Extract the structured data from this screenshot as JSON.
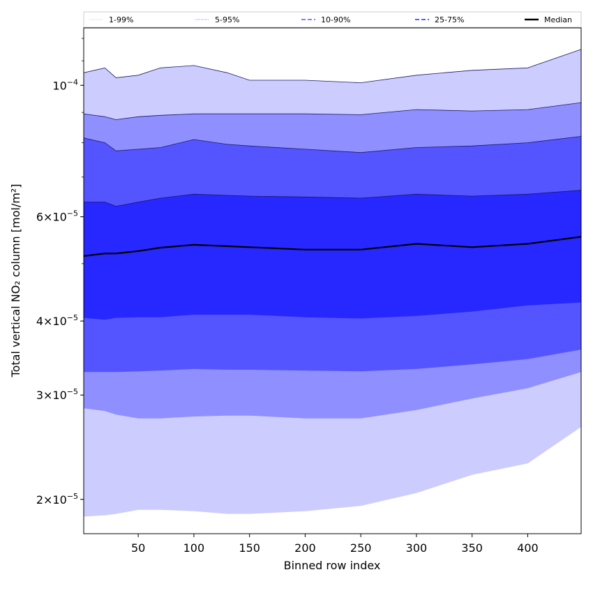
{
  "chart_data": {
    "type": "area",
    "xlabel": "Binned row index",
    "ylabel": "Total vertical NO₂ column [mol/m²]",
    "yscale": "log",
    "xlim": [
      1,
      448
    ],
    "ylim": [
      1.75e-05,
      0.000125
    ],
    "x_ticks": [
      50,
      100,
      150,
      200,
      250,
      300,
      350,
      400
    ],
    "y_ticks": [
      {
        "value": 2e-05,
        "mant": "2",
        "exp": "−5"
      },
      {
        "value": 3e-05,
        "mant": "3",
        "exp": "−5"
      },
      {
        "value": 4e-05,
        "mant": "4",
        "exp": "−5"
      },
      {
        "value": 6e-05,
        "mant": "6",
        "exp": "−5"
      },
      {
        "value": 0.0001,
        "mant": "10",
        "exp": "−4"
      }
    ],
    "legend_position": "top, spanning",
    "x": [
      1,
      20,
      30,
      50,
      70,
      100,
      130,
      150,
      200,
      250,
      300,
      350,
      400,
      448
    ],
    "series": [
      {
        "name": "1-99%",
        "kind": "band",
        "color": "#ccccff",
        "lower": [
          1.87e-05,
          1.88e-05,
          1.89e-05,
          1.92e-05,
          1.92e-05,
          1.91e-05,
          1.89e-05,
          1.89e-05,
          1.91e-05,
          1.95e-05,
          2.05e-05,
          2.2e-05,
          2.3e-05,
          2.65e-05
        ],
        "upper": [
          0.000105,
          0.000107,
          0.000103,
          0.000104,
          0.000107,
          0.000108,
          0.000105,
          0.000102,
          0.000102,
          0.000101,
          0.000104,
          0.000106,
          0.000107,
          0.000115
        ]
      },
      {
        "name": "5-95%",
        "kind": "band",
        "color": "#8f8fff",
        "lower": [
          2.85e-05,
          2.82e-05,
          2.78e-05,
          2.74e-05,
          2.74e-05,
          2.76e-05,
          2.77e-05,
          2.77e-05,
          2.74e-05,
          2.74e-05,
          2.83e-05,
          2.96e-05,
          3.08e-05,
          3.28e-05
        ],
        "upper": [
          8.95e-05,
          8.85e-05,
          8.75e-05,
          8.85e-05,
          8.9e-05,
          8.95e-05,
          8.95e-05,
          8.95e-05,
          8.95e-05,
          8.92e-05,
          9.1e-05,
          9.05e-05,
          9.1e-05,
          9.35e-05
        ]
      },
      {
        "name": "10-90%",
        "kind": "band",
        "color": "#5555ff",
        "lower": [
          3.28e-05,
          3.28e-05,
          3.28e-05,
          3.29e-05,
          3.3e-05,
          3.32e-05,
          3.31e-05,
          3.31e-05,
          3.3e-05,
          3.29e-05,
          3.32e-05,
          3.38e-05,
          3.45e-05,
          3.58e-05
        ],
        "upper": [
          8.15e-05,
          8e-05,
          7.75e-05,
          7.8e-05,
          7.85e-05,
          8.1e-05,
          7.95e-05,
          7.9e-05,
          7.8e-05,
          7.7e-05,
          7.85e-05,
          7.9e-05,
          8e-05,
          8.2e-05
        ]
      },
      {
        "name": "25-75%",
        "kind": "band",
        "color": "#2727ff",
        "lower": [
          4.05e-05,
          4.02e-05,
          4.05e-05,
          4.06e-05,
          4.06e-05,
          4.1e-05,
          4.1e-05,
          4.1e-05,
          4.06e-05,
          4.04e-05,
          4.08e-05,
          4.15e-05,
          4.25e-05,
          4.3e-05
        ],
        "upper": [
          6.35e-05,
          6.35e-05,
          6.25e-05,
          6.35e-05,
          6.45e-05,
          6.55e-05,
          6.52e-05,
          6.5e-05,
          6.48e-05,
          6.45e-05,
          6.55e-05,
          6.5e-05,
          6.55e-05,
          6.65e-05
        ]
      },
      {
        "name": "Median",
        "kind": "line",
        "color": "#000000",
        "values": [
          5.15e-05,
          5.2e-05,
          5.2e-05,
          5.25e-05,
          5.32e-05,
          5.38e-05,
          5.35e-05,
          5.33e-05,
          5.28e-05,
          5.28e-05,
          5.4e-05,
          5.33e-05,
          5.4e-05,
          5.55e-05
        ]
      }
    ]
  },
  "legend": [
    {
      "label": "1-99%",
      "color": "#ccccff",
      "dash": "1 1",
      "width": 1
    },
    {
      "label": "5-95%",
      "color": "#8f8fff",
      "dash": "1 1",
      "width": 1
    },
    {
      "label": "10-90%",
      "color": "#5555ff",
      "dash": "6 3",
      "width": 1.4
    },
    {
      "label": "25-75%",
      "color": "#2727ff",
      "dash": "6 3",
      "width": 1.6
    },
    {
      "label": "Median",
      "color": "#000000",
      "dash": "",
      "width": 2.5
    }
  ]
}
